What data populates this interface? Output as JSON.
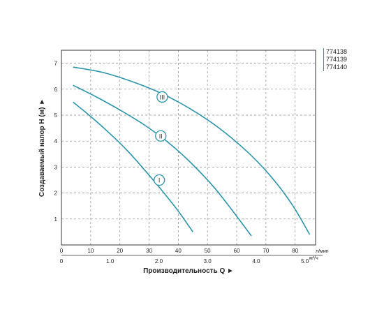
{
  "chart_data": {
    "type": "line",
    "ylabel": "Создаваемый напор H (м) ►",
    "xlabel": "Производительность Q ►",
    "x_unit_top": "л/мин",
    "x_unit_bottom": "м³/ч",
    "xlim_lpm": [
      0,
      87
    ],
    "xlim_m3h": [
      0,
      5.22
    ],
    "ylim": [
      0,
      7.5
    ],
    "x_ticks_top": [
      0,
      10,
      20,
      30,
      40,
      50,
      60,
      70,
      80
    ],
    "x_ticks_bottom": [
      "0",
      "1.0",
      "2.0",
      "3.0",
      "4.0",
      "5.0"
    ],
    "x_ticks_bottom_values": [
      0,
      1.0,
      2.0,
      3.0,
      4.0,
      5.0
    ],
    "y_ticks": [
      0,
      1,
      2,
      3,
      4,
      5,
      6,
      7
    ],
    "grid": true,
    "line_color": "#2a95aa",
    "series": [
      {
        "name": "I",
        "marker_at": [
          33.5,
          2.5
        ],
        "x": [
          4,
          10,
          16,
          22,
          28,
          34,
          40,
          45
        ],
        "y": [
          5.5,
          4.95,
          4.35,
          3.7,
          2.95,
          2.15,
          1.3,
          0.5
        ]
      },
      {
        "name": "II",
        "marker_at": [
          34,
          4.2
        ],
        "x": [
          4,
          12,
          20,
          28,
          36,
          44,
          52,
          58,
          65
        ],
        "y": [
          6.15,
          5.7,
          5.2,
          4.65,
          4.0,
          3.2,
          2.25,
          1.4,
          0.35
        ]
      },
      {
        "name": "III",
        "marker_at": [
          34.5,
          5.7
        ],
        "x": [
          4,
          14,
          24,
          34,
          44,
          54,
          64,
          72,
          79,
          85
        ],
        "y": [
          6.85,
          6.65,
          6.3,
          5.85,
          5.25,
          4.5,
          3.55,
          2.6,
          1.55,
          0.4
        ]
      }
    ]
  },
  "legend": [
    "774138",
    "774139",
    "774140"
  ]
}
